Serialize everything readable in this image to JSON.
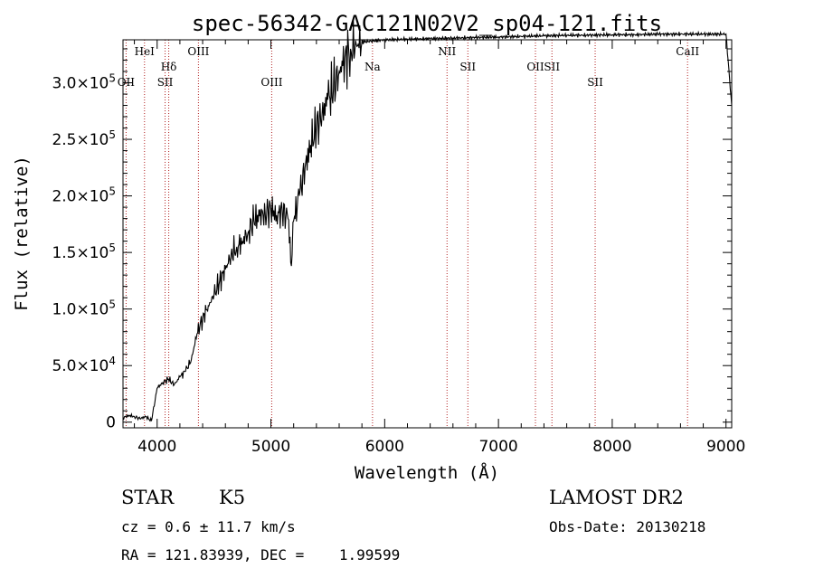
{
  "chart_data": {
    "type": "line",
    "title": "spec-56342-GAC121N02V2_sp04-121.fits",
    "xlabel": "Wavelength (Å)",
    "ylabel": "Flux (relative)",
    "xlim": [
      3700,
      9050
    ],
    "ylim": [
      -5000,
      338000
    ],
    "x_ticks": [
      4000,
      5000,
      6000,
      7000,
      8000,
      9000
    ],
    "y_ticks": [
      {
        "value": 0,
        "mantissa": "0",
        "exp": ""
      },
      {
        "value": 50000,
        "mantissa": "5.0×10",
        "exp": "4"
      },
      {
        "value": 100000,
        "mantissa": "1.0×10",
        "exp": "5"
      },
      {
        "value": 150000,
        "mantissa": "1.5×10",
        "exp": "5"
      },
      {
        "value": 200000,
        "mantissa": "2.0×10",
        "exp": "5"
      },
      {
        "value": 250000,
        "mantissa": "2.5×10",
        "exp": "5"
      },
      {
        "value": 300000,
        "mantissa": "3.0×10",
        "exp": "5"
      }
    ],
    "spectral_lines": [
      {
        "name": "OII",
        "x": 3727,
        "row": 3
      },
      {
        "name": "HeI",
        "x": 3889,
        "row": 1
      },
      {
        "name": "Hδ",
        "x": 4102,
        "row": 2
      },
      {
        "name": "SII",
        "x": 4070,
        "row": 3
      },
      {
        "name": "OIII",
        "x": 4363,
        "row": 1
      },
      {
        "name": "OIII",
        "x": 5007,
        "row": 3
      },
      {
        "name": "Na",
        "x": 5893,
        "row": 2
      },
      {
        "name": "NII",
        "x": 6548,
        "row": 1
      },
      {
        "name": "SII",
        "x": 6731,
        "row": 2
      },
      {
        "name": "OII",
        "x": 7325,
        "row": 2
      },
      {
        "name": "SII",
        "x": 7470,
        "row": 2
      },
      {
        "name": "SII",
        "x": 7850,
        "row": 3
      },
      {
        "name": "CaII",
        "x": 8662,
        "row": 1
      }
    ],
    "series": [
      {
        "x": [
          3700,
          3750,
          3800,
          3850,
          3900,
          3950,
          4000,
          4050,
          4100,
          4150,
          4200,
          4250,
          4300,
          4350,
          4400,
          4450,
          4500,
          4550,
          4600,
          4650,
          4700,
          4750,
          4800,
          4850,
          4900,
          4950,
          5000,
          5050,
          5100,
          5150,
          5180,
          5200,
          5250,
          5300,
          5350,
          5400,
          5450,
          5500,
          5550,
          5600,
          5650,
          5700,
          5750,
          5800,
          5900,
          6000,
          6200,
          6400,
          6600,
          6800,
          7000,
          7200,
          7400,
          7600,
          7800,
          8000,
          8200,
          8400,
          8600,
          8800,
          9000,
          9050
        ],
        "y": [
          4000,
          6000,
          5000,
          3000,
          5000,
          1000,
          30000,
          35000,
          38000,
          33000,
          40000,
          45000,
          55000,
          78000,
          92000,
          103000,
          112000,
          125000,
          135000,
          148000,
          155000,
          160000,
          168000,
          178000,
          182000,
          185000,
          188000,
          183000,
          186000,
          180000,
          138000,
          178000,
          200000,
          225000,
          245000,
          260000,
          272000,
          285000,
          295000,
          310000,
          322000,
          330000,
          334000,
          336000,
          337000,
          338000,
          338500,
          339000,
          339500,
          340000,
          340500,
          341000,
          341500,
          342000,
          342000,
          342500,
          342500,
          343000,
          343000,
          343000,
          343000,
          280000
        ]
      }
    ],
    "grid": false,
    "legend": "none"
  },
  "info": {
    "object_class": "STAR",
    "subclass": "K5",
    "survey": "LAMOST DR2",
    "cz": "cz = 0.6 ± 11.7 km/s",
    "obs_date": "Obs-Date: 20130218",
    "coords": "RA = 121.83939, DEC =    1.99599"
  }
}
